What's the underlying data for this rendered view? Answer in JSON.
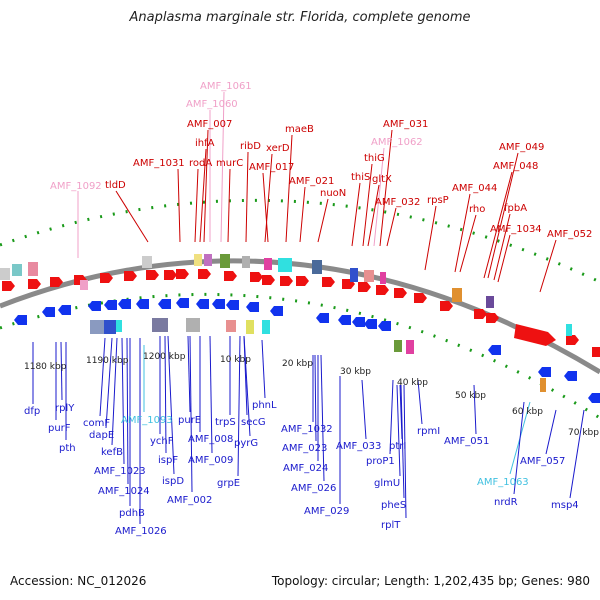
{
  "title": "Anaplasma marginale str. Florida, complete genome",
  "footer": {
    "accession": "Accession: NC_012026",
    "topology": "Topology: circular; Length: 1,202,435 bp; Genes: 980"
  },
  "colors": {
    "backbone": "#8a8a8a",
    "forward_label": "#cc0000",
    "reverse_label": "#1a1acc",
    "rna_pink": "#f0a0c8",
    "rna_cyan": "#40c0e0",
    "tick_green": "#1a9a1a",
    "forward_gene": "#ee1111",
    "reverse_gene": "#1133ee"
  },
  "scale_labels": [
    "1180 kbp",
    "1190 kbp",
    "1200 kbp",
    "10 kbp",
    "20 kbp",
    "30 kbp",
    "40 kbp",
    "50 kbp",
    "60 kbp",
    "70 kbp"
  ],
  "forward_labels": [
    {
      "text": "AMF_1061",
      "cls": "pink"
    },
    {
      "text": "AMF_1060",
      "cls": "pink"
    },
    {
      "text": "AMF_007",
      "cls": "red"
    },
    {
      "text": "ihfA",
      "cls": "red"
    },
    {
      "text": "rodA",
      "cls": "red"
    },
    {
      "text": "murC",
      "cls": "red"
    },
    {
      "text": "AMF_1031",
      "cls": "red"
    },
    {
      "text": "tldD",
      "cls": "red"
    },
    {
      "text": "AMF_1092",
      "cls": "pink"
    },
    {
      "text": "ribD",
      "cls": "red"
    },
    {
      "text": "xerD",
      "cls": "red"
    },
    {
      "text": "maeB",
      "cls": "red"
    },
    {
      "text": "AMF_017",
      "cls": "red"
    },
    {
      "text": "AMF_021",
      "cls": "red"
    },
    {
      "text": "nuoN",
      "cls": "red"
    },
    {
      "text": "AMF_031",
      "cls": "red"
    },
    {
      "text": "AMF_1062",
      "cls": "pink"
    },
    {
      "text": "thiG",
      "cls": "red"
    },
    {
      "text": "thiS",
      "cls": "red"
    },
    {
      "text": "gltX",
      "cls": "red"
    },
    {
      "text": "AMF_032",
      "cls": "red"
    },
    {
      "text": "rpsP",
      "cls": "red"
    },
    {
      "text": "AMF_049",
      "cls": "red"
    },
    {
      "text": "AMF_048",
      "cls": "red"
    },
    {
      "text": "AMF_044",
      "cls": "red"
    },
    {
      "text": "rho",
      "cls": "red"
    },
    {
      "text": "fpbA",
      "cls": "red"
    },
    {
      "text": "AMF_1034",
      "cls": "red"
    },
    {
      "text": "AMF_052",
      "cls": "red"
    }
  ],
  "reverse_labels": [
    {
      "text": "dfp",
      "cls": "blue"
    },
    {
      "text": "rplY",
      "cls": "blue"
    },
    {
      "text": "purF",
      "cls": "blue"
    },
    {
      "text": "pth",
      "cls": "blue"
    },
    {
      "text": "comF",
      "cls": "blue"
    },
    {
      "text": "dapE",
      "cls": "blue"
    },
    {
      "text": "kefB",
      "cls": "blue"
    },
    {
      "text": "AMF_1023",
      "cls": "blue"
    },
    {
      "text": "AMF_1024",
      "cls": "blue"
    },
    {
      "text": "pdhB",
      "cls": "blue"
    },
    {
      "text": "AMF_1026",
      "cls": "blue"
    },
    {
      "text": "AMF_1093",
      "cls": "cyan"
    },
    {
      "text": "ychF",
      "cls": "blue"
    },
    {
      "text": "ispF",
      "cls": "blue"
    },
    {
      "text": "ispD",
      "cls": "blue"
    },
    {
      "text": "purE",
      "cls": "blue"
    },
    {
      "text": "AMF_002",
      "cls": "blue"
    },
    {
      "text": "AMF_008",
      "cls": "blue"
    },
    {
      "text": "AMF_009",
      "cls": "blue"
    },
    {
      "text": "trpS",
      "cls": "blue"
    },
    {
      "text": "secG",
      "cls": "blue"
    },
    {
      "text": "pyrG",
      "cls": "blue"
    },
    {
      "text": "grpE",
      "cls": "blue"
    },
    {
      "text": "phnL",
      "cls": "blue"
    },
    {
      "text": "AMF_1032",
      "cls": "blue"
    },
    {
      "text": "AMF_023",
      "cls": "blue"
    },
    {
      "text": "AMF_024",
      "cls": "blue"
    },
    {
      "text": "AMF_026",
      "cls": "blue"
    },
    {
      "text": "AMF_029",
      "cls": "blue"
    },
    {
      "text": "AMF_033",
      "cls": "blue"
    },
    {
      "text": "proP1",
      "cls": "blue"
    },
    {
      "text": "ptrI",
      "cls": "blue"
    },
    {
      "text": "glmU",
      "cls": "blue"
    },
    {
      "text": "pheS",
      "cls": "blue"
    },
    {
      "text": "rplT",
      "cls": "blue"
    },
    {
      "text": "rpmI",
      "cls": "blue"
    },
    {
      "text": "AMF_051",
      "cls": "blue"
    },
    {
      "text": "AMF_1063",
      "cls": "cyan"
    },
    {
      "text": "nrdR",
      "cls": "blue"
    },
    {
      "text": "AMF_057",
      "cls": "blue"
    },
    {
      "text": "msp4",
      "cls": "blue"
    }
  ]
}
